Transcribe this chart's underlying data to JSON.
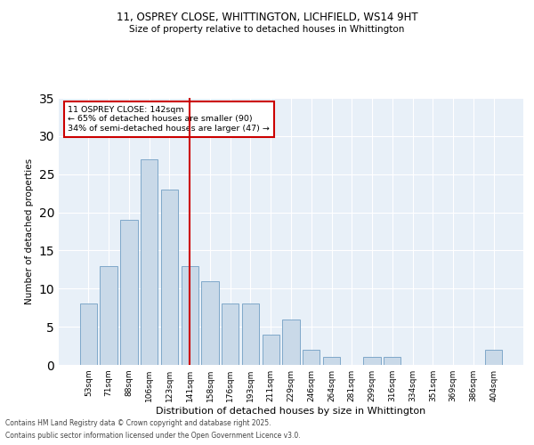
{
  "title1": "11, OSPREY CLOSE, WHITTINGTON, LICHFIELD, WS14 9HT",
  "title2": "Size of property relative to detached houses in Whittington",
  "xlabel": "Distribution of detached houses by size in Whittington",
  "ylabel": "Number of detached properties",
  "categories": [
    "53sqm",
    "71sqm",
    "88sqm",
    "106sqm",
    "123sqm",
    "141sqm",
    "158sqm",
    "176sqm",
    "193sqm",
    "211sqm",
    "229sqm",
    "246sqm",
    "264sqm",
    "281sqm",
    "299sqm",
    "316sqm",
    "334sqm",
    "351sqm",
    "369sqm",
    "386sqm",
    "404sqm"
  ],
  "values": [
    8,
    13,
    19,
    27,
    23,
    13,
    11,
    8,
    8,
    4,
    6,
    2,
    1,
    0,
    1,
    1,
    0,
    0,
    0,
    0,
    2
  ],
  "bar_color": "#c9d9e8",
  "bar_edgecolor": "#7fa8c9",
  "vline_color": "#cc0000",
  "annotation_text": "11 OSPREY CLOSE: 142sqm\n← 65% of detached houses are smaller (90)\n34% of semi-detached houses are larger (47) →",
  "annotation_box_color": "#ffffff",
  "annotation_box_edgecolor": "#cc0000",
  "ylim": [
    0,
    35
  ],
  "yticks": [
    0,
    5,
    10,
    15,
    20,
    25,
    30,
    35
  ],
  "bg_color": "#e8f0f8",
  "grid_color": "#ffffff",
  "footer1": "Contains HM Land Registry data © Crown copyright and database right 2025.",
  "footer2": "Contains public sector information licensed under the Open Government Licence v3.0."
}
